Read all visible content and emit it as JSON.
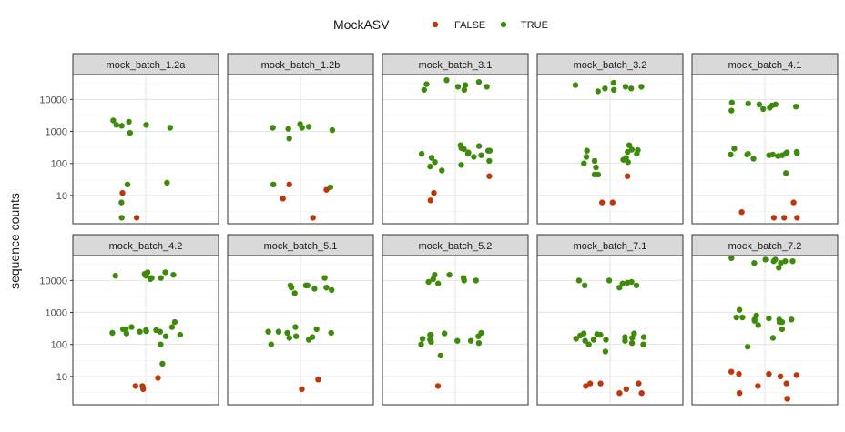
{
  "chart_data": {
    "type": "scatter",
    "facet": "strip",
    "legend": {
      "title": "MockASV",
      "position": "top",
      "entries": [
        {
          "label": "FALSE",
          "color": "#C0360A"
        },
        {
          "label": "TRUE",
          "color": "#3E8A0A"
        }
      ]
    },
    "ylabel": "sequence counts",
    "y_scale": "log10",
    "ylim": [
      1.3,
      60000
    ],
    "y_ticks": [
      10,
      100,
      1000,
      10000
    ],
    "y_tick_labels": [
      "10",
      "100",
      "1000",
      "10000"
    ],
    "grid": true,
    "x_axis_shown": false,
    "panels": [
      {
        "title": "mock_batch_1.2a",
        "TRUE": [
          900,
          1600,
          22,
          2000,
          2200,
          6,
          2,
          1600,
          1300,
          1500,
          25
        ],
        "FALSE": [
          12,
          2
        ]
      },
      {
        "title": "mock_batch_1.2b",
        "TRUE": [
          1200,
          1100,
          18,
          22,
          600,
          1300,
          1400,
          1300,
          1700
        ],
        "FALSE": [
          2,
          8,
          15,
          22
        ]
      },
      {
        "title": "mock_batch_3.1",
        "TRUE": [
          40000,
          35000,
          20000,
          25000,
          28000,
          20000,
          30000,
          25000,
          80,
          110,
          200,
          90,
          60,
          300,
          250,
          350,
          220,
          160,
          370,
          250,
          280,
          300,
          200,
          120,
          150,
          180
        ],
        "FALSE": [
          7,
          40,
          12
        ]
      },
      {
        "title": "mock_batch_3.2",
        "TRUE": [
          22000,
          25000,
          18000,
          22000,
          25000,
          28000,
          33000,
          20000,
          370,
          150,
          100,
          75,
          45,
          120,
          200,
          260,
          230,
          110,
          130,
          250,
          160,
          45,
          270
        ],
        "FALSE": [
          6,
          6,
          40
        ]
      },
      {
        "title": "mock_batch_4.1",
        "TRUE": [
          5000,
          6500,
          8000,
          7000,
          7500,
          6000,
          4500,
          5500,
          7000,
          200,
          180,
          190,
          190,
          210,
          200,
          230,
          220,
          180,
          50,
          140,
          170,
          290,
          190
        ],
        "FALSE": [
          2,
          6,
          2,
          3,
          2
        ]
      },
      {
        "title": "mock_batch_4.2",
        "TRUE": [
          18000,
          15000,
          12000,
          14000,
          11000,
          15000,
          16000,
          12000,
          14000,
          18000,
          200,
          100,
          300,
          280,
          250,
          230,
          350,
          25,
          500,
          280,
          220,
          180,
          250,
          300,
          350,
          260
        ],
        "FALSE": [
          9,
          5,
          4,
          5
        ]
      },
      {
        "title": "mock_batch_5.1",
        "TRUE": [
          7000,
          6000,
          4000,
          7000,
          6000,
          12000,
          5000,
          7000,
          5500,
          230,
          180,
          350,
          250,
          160,
          140,
          100,
          230,
          300,
          250,
          170
        ],
        "FALSE": [
          8,
          4
        ]
      },
      {
        "title": "mock_batch_5.2",
        "TRUE": [
          10000,
          8000,
          9000,
          15000,
          11000,
          10000,
          15000,
          12000,
          220,
          180,
          230,
          200,
          120,
          150,
          130,
          140,
          100,
          130,
          200,
          110,
          45
        ],
        "FALSE": [
          5
        ]
      },
      {
        "title": "mock_batch_7.1",
        "TRUE": [
          8000,
          7000,
          9000,
          10000,
          10000,
          8500,
          7000,
          6000,
          170,
          200,
          210,
          220,
          220,
          170,
          140,
          100,
          190,
          130,
          140,
          150,
          160,
          100,
          110,
          200,
          60,
          130
        ],
        "FALSE": [
          6,
          6,
          4,
          3,
          5,
          3,
          6
        ]
      },
      {
        "title": "mock_batch_7.2",
        "TRUE": [
          35000,
          50000,
          45000,
          40000,
          40000,
          25000,
          35000,
          45000,
          40000,
          600,
          500,
          650,
          700,
          400,
          600,
          85,
          1200,
          600,
          800,
          700,
          550,
          500,
          160,
          300
        ],
        "FALSE": [
          6,
          14,
          10,
          5,
          2,
          2,
          12,
          11,
          12,
          3
        ]
      }
    ]
  }
}
